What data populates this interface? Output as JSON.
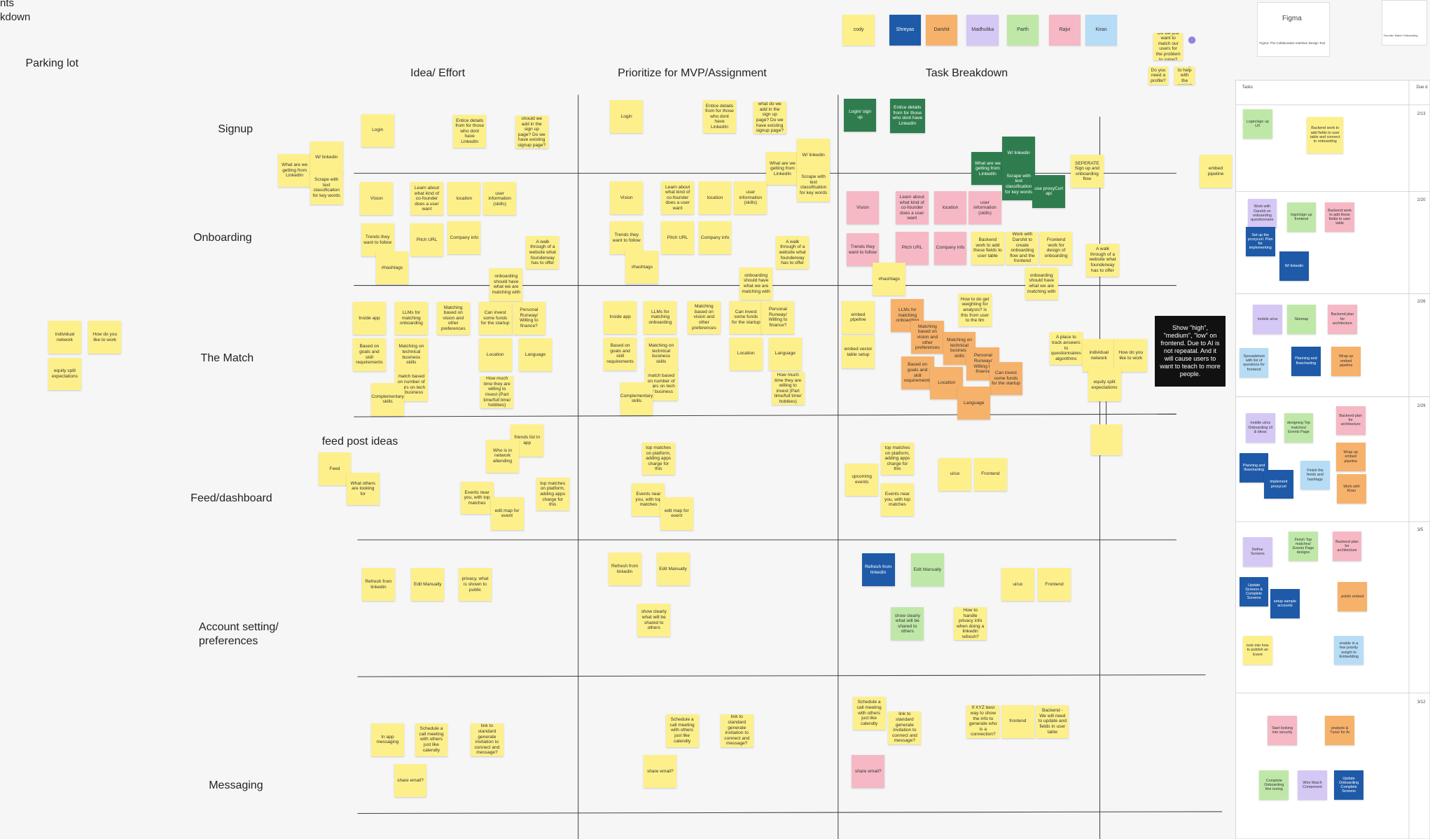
{
  "board": {
    "header_fragments": [
      "nts",
      "kdown"
    ],
    "parking_lot": "Parking lot",
    "feed_label": "feed post ideas",
    "columns": [
      "Idea/ Effort",
      "Prioritize for MVP/Assignment",
      "Task Breakdown"
    ],
    "rows": [
      "Signup",
      "Onboarding",
      "The Match",
      "Feed/dashboard",
      "Account setting/ preferences",
      "Messaging"
    ],
    "assignees": [
      {
        "name": "cody",
        "color": "#fdf08b"
      },
      {
        "name": "Shreyas",
        "color": "#1e5aa8"
      },
      {
        "name": "Darshit",
        "color": "#f6b26b"
      },
      {
        "name": "Madhulika",
        "color": "#d6c8f5"
      },
      {
        "name": "Parth",
        "color": "#bfe8a8"
      },
      {
        "name": "Rajvi",
        "color": "#f5b8c4"
      },
      {
        "name": "Kiran",
        "color": "#b6dcf6"
      }
    ],
    "callout": "Show \"high\", \"medium\", \"low\" on frontend. Due to AI is not repeatal. And it will cause users to want to teach to more people.",
    "figma_thumbnail": {
      "title": "Figma",
      "caption": "Figma: The Collaborative Interface Design Tool"
    },
    "side_thumbnail": "Founder Match Onboarding",
    "notes": [
      {
        "text": "Login",
        "color": "#fdf08b"
      },
      {
        "text": "Entice details from for those who dont have LinkedIn",
        "color": "#fdf08b"
      },
      {
        "text": "should we add in the sign up page? Do we have existing signup page?",
        "color": "#fdf08b"
      },
      {
        "text": "What are we getting from LinkedIn",
        "color": "#fdf08b"
      },
      {
        "text": "W/ linkedin",
        "color": "#fdf08b"
      },
      {
        "text": "Scrape with text classification for key words",
        "color": "#fdf08b"
      },
      {
        "text": "Vision",
        "color": "#fdf08b"
      },
      {
        "text": "Learn about what kind of co-founder does a user want",
        "color": "#fdf08b"
      },
      {
        "text": "location",
        "color": "#fdf08b"
      },
      {
        "text": "user information (skills)",
        "color": "#fdf08b"
      },
      {
        "text": "Trends they want to follow",
        "color": "#fdf08b"
      },
      {
        "text": "Pitch URL",
        "color": "#fdf08b"
      },
      {
        "text": "Company info",
        "color": "#fdf08b"
      },
      {
        "text": "A walk through of a website what founderway has to offer",
        "color": "#fdf08b"
      },
      {
        "text": "#hashtags",
        "color": "#fdf08b"
      },
      {
        "text": "onboarding should have what we are matching with",
        "color": "#fdf08b"
      },
      {
        "text": "Inside app",
        "color": "#fdf08b"
      },
      {
        "text": "LLMs for matching onboarding",
        "color": "#fdf08b"
      },
      {
        "text": "Matching based on vision and other preferences",
        "color": "#fdf08b"
      },
      {
        "text": "Can invest some funds for the startup",
        "color": "#fdf08b"
      },
      {
        "text": "Personal Runway/ Willing to finance?",
        "color": "#fdf08b"
      },
      {
        "text": "Based on goals and skill requirements",
        "color": "#fdf08b"
      },
      {
        "text": "Matching on technical business skills",
        "color": "#fdf08b"
      },
      {
        "text": "match based on number of years on tech or business",
        "color": "#fdf08b"
      },
      {
        "text": "Location",
        "color": "#fdf08b"
      },
      {
        "text": "Language",
        "color": "#fdf08b"
      },
      {
        "text": "How much time they are willing to invest (Part time/full time/ hobbies)",
        "color": "#fdf08b"
      },
      {
        "text": "Complementary skills",
        "color": "#fdf08b"
      },
      {
        "text": "individual network",
        "color": "#fdf08b"
      },
      {
        "text": "How do you like to work",
        "color": "#fdf08b"
      },
      {
        "text": "equity split expectations",
        "color": "#fdf08b"
      },
      {
        "text": "Feed",
        "color": "#fdf08b"
      },
      {
        "text": "What others are looking for",
        "color": "#fdf08b"
      },
      {
        "text": "friends list in app",
        "color": "#fdf08b"
      },
      {
        "text": "Who is in network attending",
        "color": "#fdf08b"
      },
      {
        "text": "Events near you, with top matches",
        "color": "#fdf08b"
      },
      {
        "text": "edit map for event",
        "color": "#fdf08b"
      },
      {
        "text": "top matches on platform, adding apps charge for this",
        "color": "#fdf08b"
      },
      {
        "text": "Refresh from linkedin",
        "color": "#fdf08b"
      },
      {
        "text": "Edit Manually",
        "color": "#fdf08b"
      },
      {
        "text": "privacy, what is shown to public",
        "color": "#fdf08b"
      },
      {
        "text": "In app messaging",
        "color": "#fdf08b"
      },
      {
        "text": "Schedule a call meeting with others just like calendly",
        "color": "#fdf08b"
      },
      {
        "text": "link to standard generate invitation to connect and message?",
        "color": "#fdf08b"
      },
      {
        "text": "share email?",
        "color": "#fdf08b"
      },
      {
        "text": "Login",
        "color": "#fdf08b"
      },
      {
        "text": "Entice details from for those who dont have LinkedIn",
        "color": "#fdf08b"
      },
      {
        "text": "what do we add in the sign up page? Do we have existing signup page?",
        "color": "#fdf08b"
      },
      {
        "text": "What are we getting from LinkedIn",
        "color": "#fdf08b"
      },
      {
        "text": "W/ linkedin",
        "color": "#fdf08b"
      },
      {
        "text": "Scrape with text classification for key words",
        "color": "#fdf08b"
      },
      {
        "text": "Vision",
        "color": "#fdf08b"
      },
      {
        "text": "Learn about what kind of co-founder does a user want",
        "color": "#fdf08b"
      },
      {
        "text": "location",
        "color": "#fdf08b"
      },
      {
        "text": "user information (skills)",
        "color": "#fdf08b"
      },
      {
        "text": "Trends they want to follow",
        "color": "#fdf08b"
      },
      {
        "text": "Pitch URL",
        "color": "#fdf08b"
      },
      {
        "text": "Company info",
        "color": "#fdf08b"
      },
      {
        "text": "A walk through of a website what founderway has to offer",
        "color": "#fdf08b"
      },
      {
        "text": "#hashtags",
        "color": "#fdf08b"
      },
      {
        "text": "onboarding should have what we are matching with",
        "color": "#fdf08b"
      },
      {
        "text": "Inside app",
        "color": "#fdf08b"
      },
      {
        "text": "LLMs for matching onboarding",
        "color": "#fdf08b"
      },
      {
        "text": "Matching based on vision and other preferences",
        "color": "#fdf08b"
      },
      {
        "text": "Can invest some funds for the startup",
        "color": "#fdf08b"
      },
      {
        "text": "Personal Runway/ Willing to finance?",
        "color": "#fdf08b"
      },
      {
        "text": "Based on goals and skill requirements",
        "color": "#fdf08b"
      },
      {
        "text": "Matching on technical business skills",
        "color": "#fdf08b"
      },
      {
        "text": "match based on number of years on tech or business",
        "color": "#fdf08b"
      },
      {
        "text": "Location",
        "color": "#fdf08b"
      },
      {
        "text": "Language",
        "color": "#fdf08b"
      },
      {
        "text": "How much time they are willing to invest (Part time/full time/ hobbies)",
        "color": "#fdf08b"
      },
      {
        "text": "Complementary skills",
        "color": "#fdf08b"
      },
      {
        "text": "top matches on platform, adding apps charge for this",
        "color": "#fdf08b"
      },
      {
        "text": "Events near you, with top matches",
        "color": "#fdf08b"
      },
      {
        "text": "edit map for event",
        "color": "#fdf08b"
      },
      {
        "text": "Refresh from linkedin",
        "color": "#fdf08b"
      },
      {
        "text": "Edit Manually",
        "color": "#fdf08b"
      },
      {
        "text": "show clearly what will be shared to others",
        "color": "#fdf08b"
      },
      {
        "text": "Schedule a call meeting with others just like calendly",
        "color": "#fdf08b"
      },
      {
        "text": "link to standard generate invitation to connect and message?",
        "color": "#fdf08b"
      },
      {
        "text": "share email?",
        "color": "#fdf08b"
      },
      {
        "text": "Login/ sign up",
        "color": "#2f7d4e"
      },
      {
        "text": "Entice details from for those who dont have LinkedIn",
        "color": "#2f7d4e"
      },
      {
        "text": "What are we getting from LinkedIn",
        "color": "#2f7d4e"
      },
      {
        "text": "W/ linkedin",
        "color": "#2f7d4e"
      },
      {
        "text": "Scrape with text classification for key words",
        "color": "#2f7d4e"
      },
      {
        "text": "use proxyCurl api",
        "color": "#2f7d4e"
      },
      {
        "text": "SEPERATE Sign up and onboarding flow",
        "color": "#fdf08b"
      },
      {
        "text": "embed pipeline",
        "color": "#fdf08b"
      },
      {
        "text": "Vision",
        "color": "#f5b8c4"
      },
      {
        "text": "Learn about what kind of co-founder does a user want",
        "color": "#f5b8c4"
      },
      {
        "text": "location",
        "color": "#f5b8c4"
      },
      {
        "text": "user information (skills)",
        "color": "#f5b8c4"
      },
      {
        "text": "Trends they want to follow",
        "color": "#f5b8c4"
      },
      {
        "text": "Pitch URL",
        "color": "#f5b8c4"
      },
      {
        "text": "Company info",
        "color": "#f5b8c4"
      },
      {
        "text": "Backend work to add these fields to user table",
        "color": "#fdf08b"
      },
      {
        "text": "Work with Darshit to create onboarding flow and the frontend",
        "color": "#fdf08b"
      },
      {
        "text": "Frontend work for design of onboarding",
        "color": "#fdf08b"
      },
      {
        "text": "A walk through of a website what founderway has to offer",
        "color": "#fdf08b"
      },
      {
        "text": "#hashtags",
        "color": "#fdf08b"
      },
      {
        "text": "onboarding should have what we are matching with",
        "color": "#fdf08b"
      },
      {
        "text": "embed pipeline",
        "color": "#fdf08b"
      },
      {
        "text": "embed vector table setup",
        "color": "#fdf08b"
      },
      {
        "text": "LLMs for matching onboarding",
        "color": "#f6b26b"
      },
      {
        "text": "Matching based on vision and other preferences",
        "color": "#f6b26b"
      },
      {
        "text": "Matching on technical business skills",
        "color": "#f6b26b"
      },
      {
        "text": "Personal Runway/ Willing to finance",
        "color": "#f6b26b"
      },
      {
        "text": "Can invest some funds for the startup",
        "color": "#f6b26b"
      },
      {
        "text": "Based on goals and skill requirements",
        "color": "#f6b26b"
      },
      {
        "text": "Location",
        "color": "#f6b26b"
      },
      {
        "text": "Language",
        "color": "#f6b26b"
      },
      {
        "text": "How to do get weighting for analysis? is this from user to the llm",
        "color": "#fdf08b"
      },
      {
        "text": "A place to track answers to questionnaires algorithms",
        "color": "#fdf08b"
      },
      {
        "text": "individual network",
        "color": "#fdf08b"
      },
      {
        "text": "How do you like to work",
        "color": "#fdf08b"
      },
      {
        "text": "equity split expectations",
        "color": "#fdf08b"
      },
      {
        "text": "upcoming events",
        "color": "#fdf08b"
      },
      {
        "text": "top matches on platform, adding apps charge for this",
        "color": "#fdf08b"
      },
      {
        "text": "Events near you, with top matches",
        "color": "#fdf08b"
      },
      {
        "text": "ui/ux",
        "color": "#fdf08b"
      },
      {
        "text": "Frontend",
        "color": "#fdf08b"
      },
      {
        "text": "Refresh from linkedin",
        "color": "#1e5aa8"
      },
      {
        "text": "Edit Manually",
        "color": "#bfe8a8"
      },
      {
        "text": "show clearly what will be shared to others",
        "color": "#bfe8a8"
      },
      {
        "text": "How to handle privacy info when doing a linkedin refresh?",
        "color": "#fdf08b"
      },
      {
        "text": "ui/ux",
        "color": "#fdf08b"
      },
      {
        "text": "Frontend",
        "color": "#fdf08b"
      },
      {
        "text": "Schedule a call meeting with others just like calendly",
        "color": "#fdf08b"
      },
      {
        "text": "link to standard generate invitation to connect and message?",
        "color": "#fdf08b"
      },
      {
        "text": "If XYZ best way to show the info to generate who is a connection?",
        "color": "#fdf08b"
      },
      {
        "text": "frontend",
        "color": "#fdf08b"
      },
      {
        "text": "Backend - We will need to update and fields in user table",
        "color": "#fdf08b"
      },
      {
        "text": "share email?",
        "color": "#f5b8c4"
      },
      {
        "text": "Do we just want to match our users for the problem to solve?",
        "color": "#fdf08b"
      },
      {
        "text": "Do you need a profile?",
        "color": "#fdf08b"
      },
      {
        "text": "willing to help with the project",
        "color": "#fdf08b"
      }
    ]
  },
  "panel": {
    "tasks_header": "Tasks",
    "due_header": "Due d",
    "dates": [
      "2/13",
      "2/20",
      "2/26",
      "2/29",
      "3/5",
      "3/12"
    ],
    "notes": [
      {
        "text": "Login/sign up UX",
        "color": "#bfe8a8"
      },
      {
        "text": "Backend work to add fields to user table and connect to onboarding",
        "color": "#fdf08b"
      },
      {
        "text": "Work with Darshit on onboarding questionnaire",
        "color": "#d6c8f5"
      },
      {
        "text": "Set up the proxycurl. Plan for implementing",
        "color": "#1e5aa8"
      },
      {
        "text": "login/sign up frontend",
        "color": "#bfe8a8"
      },
      {
        "text": "Backend work to add these fields to user table",
        "color": "#f5b8c4"
      },
      {
        "text": "W/ linkedin",
        "color": "#1e5aa8"
      },
      {
        "text": "mobile ui/ux",
        "color": "#d6c8f5"
      },
      {
        "text": "Sitemap",
        "color": "#bfe8a8"
      },
      {
        "text": "Backend plan for architecture",
        "color": "#f5b8c4"
      },
      {
        "text": "Spreadsheet with list of questions for frontend",
        "color": "#b6dcf6"
      },
      {
        "text": "Planning and flowcharting",
        "color": "#1e5aa8"
      },
      {
        "text": "Wrap up embed pipeline",
        "color": "#f6b26b"
      },
      {
        "text": "mobile ui/ux Onboarding UI & ideas",
        "color": "#d6c8f5"
      },
      {
        "text": "designing Top matches/ Events Page",
        "color": "#bfe8a8"
      },
      {
        "text": "Backend plan for architecture",
        "color": "#f5b8c4"
      },
      {
        "text": "Wrap up embed pipeline",
        "color": "#f6b26b"
      },
      {
        "text": "Planning and flowcharting",
        "color": "#1e5aa8"
      },
      {
        "text": "Implement proxycurl",
        "color": "#1e5aa8"
      },
      {
        "text": "Finish the feeds and hashtags",
        "color": "#b6dcf6"
      },
      {
        "text": "Work with Kiran",
        "color": "#f6b26b"
      },
      {
        "text": "Refine Screens",
        "color": "#d6c8f5"
      },
      {
        "text": "Finish Top matches/ Events Page designs",
        "color": "#bfe8a8"
      },
      {
        "text": "Backend plan for architecture",
        "color": "#f5b8c4"
      },
      {
        "text": "Update Screens & Complete Screens",
        "color": "#1e5aa8"
      },
      {
        "text": "setup sample accounts",
        "color": "#1e5aa8"
      },
      {
        "text": "polish embed",
        "color": "#f6b26b"
      },
      {
        "text": "look into how to publish an Event",
        "color": "#fdf08b"
      },
      {
        "text": "enable in a few priority weight to Embedding",
        "color": "#b6dcf6"
      },
      {
        "text": "Start looking into security",
        "color": "#f5b8c4"
      },
      {
        "text": "analysis & Tuner for Ai",
        "color": "#f6b26b"
      },
      {
        "text": "Complete Onboarding fine tuning",
        "color": "#bfe8a8"
      },
      {
        "text": "Wire Match Component",
        "color": "#d6c8f5"
      },
      {
        "text": "Update Onboarding Complete Screens",
        "color": "#1e5aa8"
      }
    ]
  }
}
